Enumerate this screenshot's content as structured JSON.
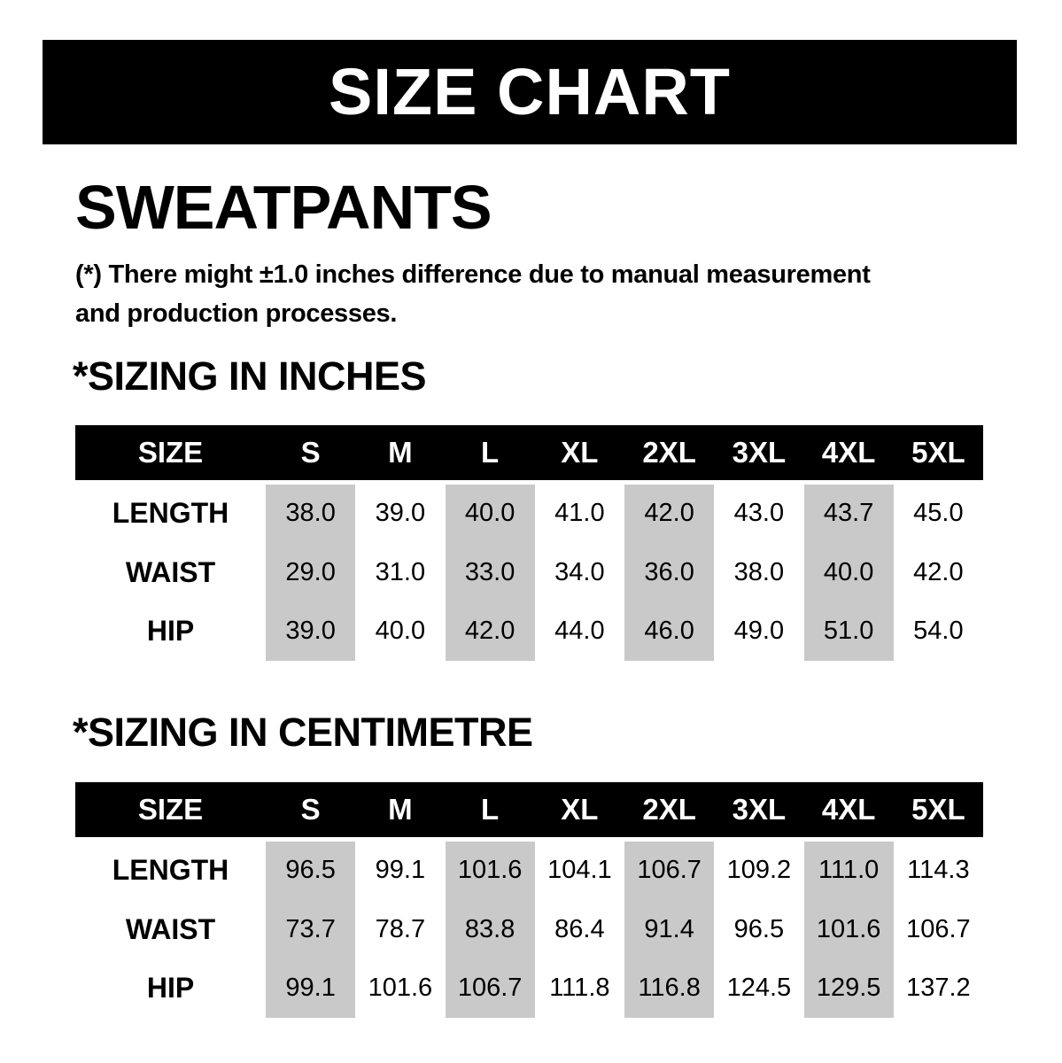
{
  "page": {
    "title_bar": {
      "title": "SIZE CHART"
    },
    "product_title": "SWEATPANTS",
    "disclaimer": "(*) There might ±1.0 inches difference due to manual measurement and production processes.",
    "disclaimer_lines": [
      "(*) There might ±1.0 inches difference due to manual measurement",
      "and production processes."
    ],
    "colors": {
      "header_bg": "#000000",
      "header_text": "#ffffff",
      "stripe": "#c9c9c9",
      "text": "#000000",
      "background": "#ffffff"
    }
  },
  "sections": [
    {
      "heading": "*SIZING IN INCHES",
      "unit": "inches",
      "table": {
        "header": [
          "SIZE",
          "S",
          "M",
          "L",
          "XL",
          "2XL",
          "3XL",
          "4XL",
          "5XL"
        ],
        "rows": [
          {
            "label": "LENGTH",
            "values": [
              "38.0",
              "39.0",
              "40.0",
              "41.0",
              "42.0",
              "43.0",
              "43.7",
              "45.0"
            ]
          },
          {
            "label": "WAIST",
            "values": [
              "29.0",
              "31.0",
              "33.0",
              "34.0",
              "36.0",
              "38.0",
              "40.0",
              "42.0"
            ]
          },
          {
            "label": "HIP",
            "values": [
              "39.0",
              "40.0",
              "42.0",
              "44.0",
              "46.0",
              "49.0",
              "51.0",
              "54.0"
            ]
          }
        ],
        "striped_columns": [
          0,
          2,
          4,
          6
        ]
      }
    },
    {
      "heading": "*SIZING IN CENTIMETRE",
      "unit": "centimetre",
      "table": {
        "header": [
          "SIZE",
          "S",
          "M",
          "L",
          "XL",
          "2XL",
          "3XL",
          "4XL",
          "5XL"
        ],
        "rows": [
          {
            "label": "LENGTH",
            "values": [
              "96.5",
              "99.1",
              "101.6",
              "104.1",
              "106.7",
              "109.2",
              "111.0",
              "114.3"
            ]
          },
          {
            "label": "WAIST",
            "values": [
              "73.7",
              "78.7",
              "83.8",
              "86.4",
              "91.4",
              "96.5",
              "101.6",
              "106.7"
            ]
          },
          {
            "label": "HIP",
            "values": [
              "99.1",
              "101.6",
              "106.7",
              "111.8",
              "116.8",
              "124.5",
              "129.5",
              "137.2"
            ]
          }
        ],
        "striped_columns": [
          0,
          2,
          4,
          6
        ]
      }
    }
  ]
}
